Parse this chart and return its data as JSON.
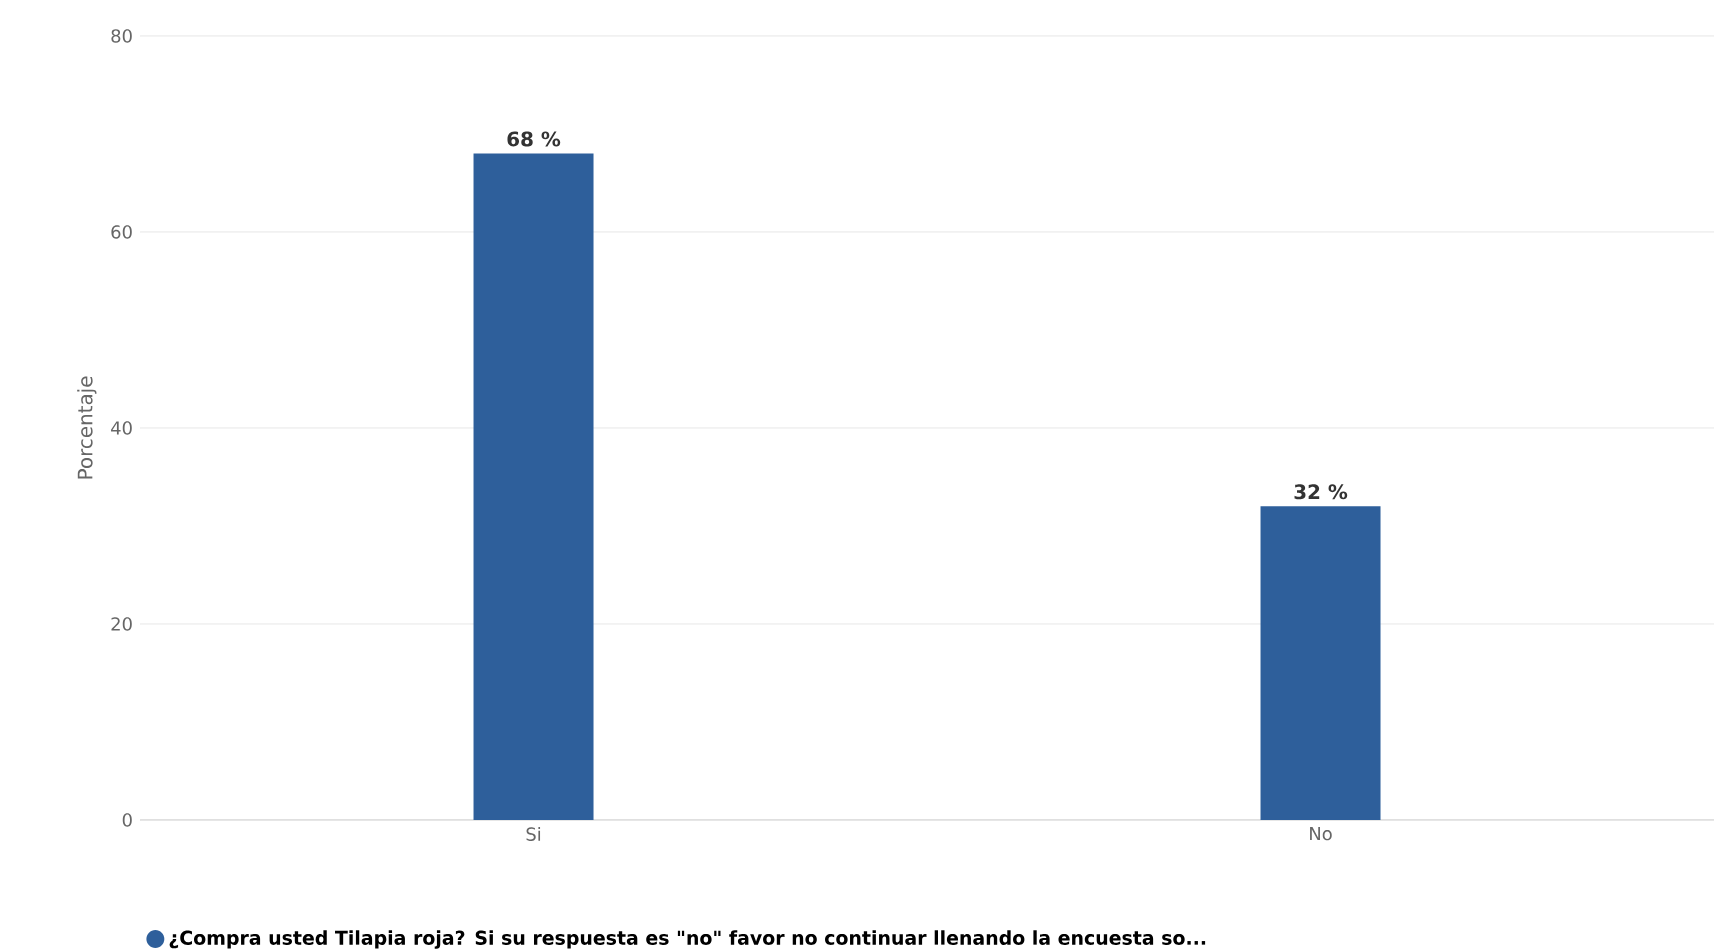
{
  "chart_data": {
    "type": "bar",
    "ylabel": "Porcentaje",
    "categories": [
      "Si",
      "No"
    ],
    "series": [
      {
        "name": "**¿Compra usted Tilapia roja? Si su respuesta es \"no\" favor no continuar llenando la encuesta so...**",
        "color": "#2e5f9b",
        "values": [
          68,
          32
        ],
        "value_labels": [
          "68 %",
          "32 %"
        ]
      }
    ],
    "ylim": [
      0,
      80
    ],
    "yticks": [
      0,
      20,
      40,
      60,
      80
    ],
    "grid": "y",
    "legend": "bottom left"
  }
}
